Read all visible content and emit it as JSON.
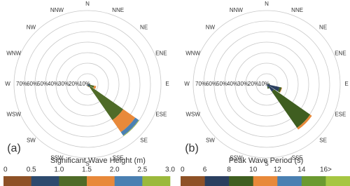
{
  "chart_data": [
    {
      "type": "rose",
      "panel_label": "(a)",
      "legend_title": "Significant Wave Height (m)",
      "directions": [
        "N",
        "NNE",
        "NE",
        "ENE",
        "E",
        "ESE",
        "SE",
        "SSE",
        "S",
        "SSW",
        "SW",
        "WSW",
        "W",
        "WNW",
        "NW",
        "NNW"
      ],
      "rlim": [
        0,
        70
      ],
      "rticks": [
        {
          "value": 10,
          "label": "10%"
        },
        {
          "value": 20,
          "label": "20%"
        },
        {
          "value": 30,
          "label": "30%"
        },
        {
          "value": 40,
          "label": "40%"
        },
        {
          "value": 50,
          "label": "50%"
        },
        {
          "value": 60,
          "label": "60%"
        },
        {
          "value": 70,
          "label": "70%"
        }
      ],
      "legend_ticks": [
        0,
        0.5,
        {
          "value": 1,
          "label": "1.0"
        },
        1.5,
        {
          "value": 2,
          "label": "2.0"
        },
        2.5,
        {
          "value": 3,
          "label": "3.0"
        }
      ],
      "series": [
        {
          "color": "#8e5126",
          "values": [
            0,
            0,
            0,
            0,
            0.5,
            0.5,
            0.5,
            0.5,
            0.5,
            0,
            0,
            0,
            0,
            0,
            0,
            0
          ]
        },
        {
          "color": "#2d4a6e",
          "values": [
            0,
            0,
            0,
            0,
            1,
            2,
            3,
            1,
            1,
            0,
            0,
            0,
            0,
            0,
            0,
            0
          ]
        },
        {
          "color": "#4f6b28",
          "values": [
            0,
            0,
            0,
            0,
            1,
            4,
            38,
            1,
            0.5,
            0,
            0,
            0,
            0,
            0,
            0,
            0
          ]
        },
        {
          "color": "#e8893a",
          "values": [
            0,
            0,
            0,
            0,
            0,
            2,
            14,
            0.5,
            0,
            0,
            0,
            0,
            0,
            0,
            0,
            0
          ]
        },
        {
          "color": "#4a80b2",
          "values": [
            0,
            0,
            0,
            0,
            0,
            0,
            4,
            0,
            0,
            0,
            0,
            0,
            0,
            0,
            0,
            0
          ]
        },
        {
          "color": "#9bb93c",
          "values": [
            0,
            0,
            0,
            0,
            0,
            0,
            0.5,
            0,
            0,
            0,
            0,
            0,
            0,
            0,
            0,
            0
          ]
        }
      ]
    },
    {
      "type": "rose",
      "panel_label": "(b)",
      "legend_title": "Peak Wave Period (s)",
      "directions": [
        "N",
        "NNE",
        "NE",
        "ENE",
        "E",
        "ESE",
        "SE",
        "SSE",
        "S",
        "SSW",
        "SW",
        "WSW",
        "W",
        "WNW",
        "NW",
        "NNW"
      ],
      "rlim": [
        0,
        70
      ],
      "rticks": [
        {
          "value": 10,
          "label": "10%"
        },
        {
          "value": 20,
          "label": "20%"
        },
        {
          "value": 30,
          "label": "30%"
        },
        {
          "value": 40,
          "label": "40%"
        },
        {
          "value": 50,
          "label": "50%"
        },
        {
          "value": 60,
          "label": "60%"
        },
        {
          "value": 70,
          "label": "70%"
        }
      ],
      "legend_ticks": [
        0,
        6,
        8,
        10,
        12,
        14,
        {
          "value": 16,
          "label": "16>"
        }
      ],
      "series": [
        {
          "color": "#8e5126",
          "values": [
            0,
            0,
            0,
            0,
            0,
            0.5,
            0.5,
            0.5,
            0,
            0,
            0,
            0,
            0,
            0,
            0,
            0
          ]
        },
        {
          "color": "#2a3f5f",
          "values": [
            0,
            0,
            0,
            0,
            2,
            12,
            8,
            2,
            1,
            0,
            0,
            0,
            0,
            0,
            0,
            0
          ]
        },
        {
          "color": "#3f5e20",
          "values": [
            0,
            0,
            0,
            0,
            1,
            2,
            42,
            2,
            0,
            0,
            0,
            0,
            0,
            0,
            0,
            0
          ]
        },
        {
          "color": "#e8893a",
          "values": [
            0,
            0,
            0,
            0,
            0,
            0.5,
            2,
            0,
            0,
            0,
            0,
            0,
            0,
            0,
            0,
            0
          ]
        },
        {
          "color": "#4a80b2",
          "values": [
            0,
            0,
            0,
            0,
            0,
            0,
            0,
            0,
            0,
            0,
            0,
            0,
            0,
            0,
            0,
            0
          ]
        },
        {
          "color": "#6b9a30",
          "values": [
            0,
            0,
            0,
            0,
            0,
            0,
            0,
            0,
            0,
            0,
            0,
            0,
            0,
            0,
            0,
            0
          ]
        },
        {
          "color": "#a6c642",
          "values": [
            0,
            0,
            0,
            0,
            0,
            0,
            0,
            0,
            0,
            0,
            0,
            0,
            0,
            0,
            0,
            0
          ]
        }
      ]
    }
  ]
}
